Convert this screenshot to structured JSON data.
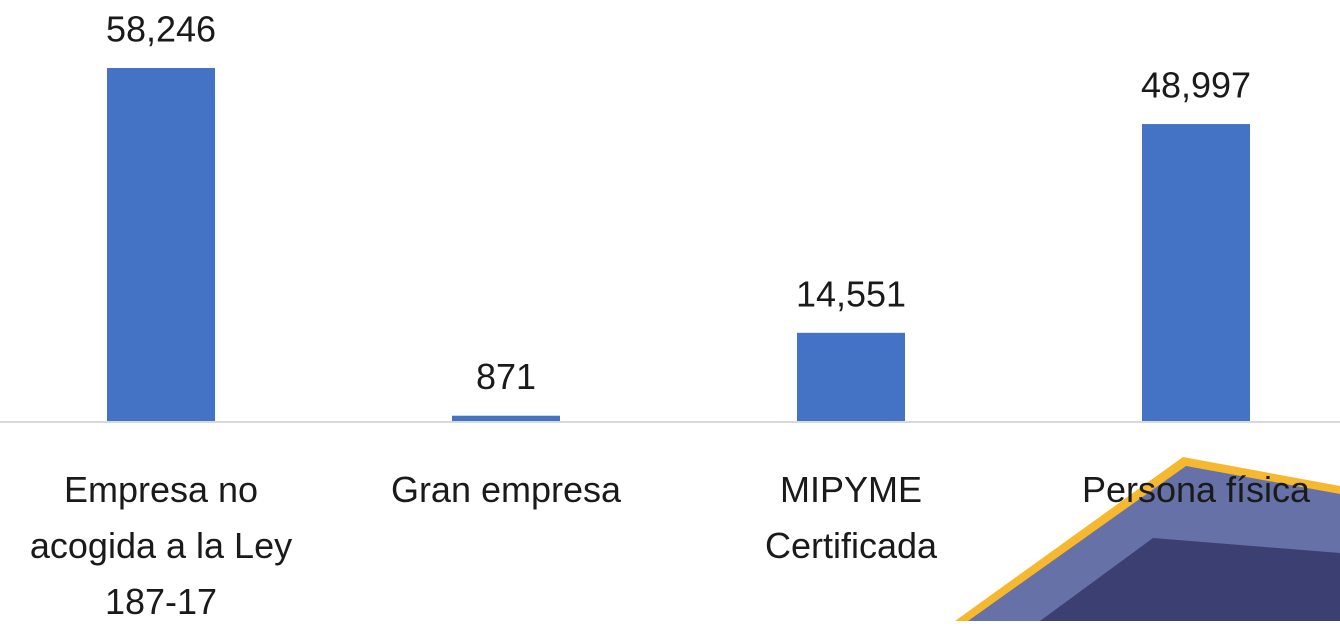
{
  "chart_data": {
    "type": "bar",
    "categories": [
      "Empresa no acogida a la Ley 187-17",
      "Gran empresa",
      "MIPYME Certificada",
      "Persona física"
    ],
    "values": [
      58246,
      871,
      14551,
      48997
    ],
    "value_labels": [
      "58,246",
      "871",
      "14,551",
      "48,997"
    ],
    "color": "#4472c4"
  }
}
